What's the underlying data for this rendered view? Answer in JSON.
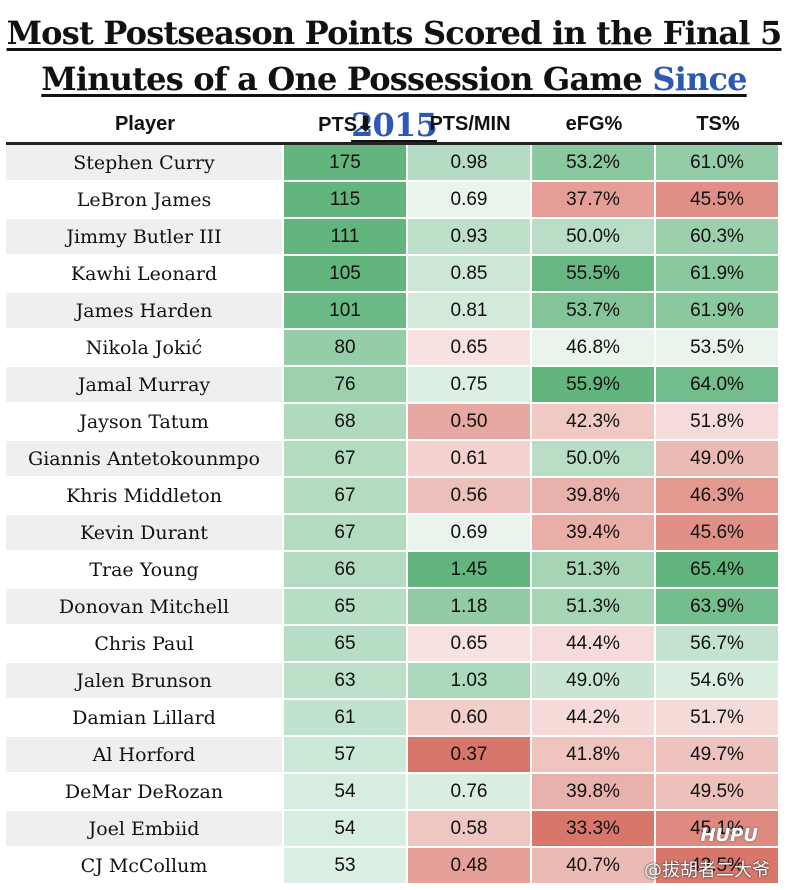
{
  "title": {
    "line1": "Most Postseason Points Scored in the Final 5",
    "line2_main": "Minutes of a One Possession Game",
    "line2_accent": "Since 2015"
  },
  "columns": [
    "Player",
    "PTS⬇",
    "PTS/MIN",
    "eFG%",
    "TS%"
  ],
  "watermark": "@拔胡者二大爷",
  "logo_text": "HUPU",
  "colors": {
    "green_strong": "#63b57e",
    "red_strong": "#d9766b",
    "neutral": "#ffffff",
    "title_accent": "#2d59b3"
  },
  "chart_data": {
    "type": "table",
    "columns": [
      "Player",
      "PTS",
      "PTS/MIN",
      "eFG%",
      "TS%"
    ],
    "rows": [
      {
        "player": "Stephen Curry",
        "pts": "175",
        "ptsmin": "0.98",
        "efg": "53.2%",
        "ts": "61.0%"
      },
      {
        "player": "LeBron James",
        "pts": "115",
        "ptsmin": "0.69",
        "efg": "37.7%",
        "ts": "45.5%"
      },
      {
        "player": "Jimmy Butler III",
        "pts": "111",
        "ptsmin": "0.93",
        "efg": "50.0%",
        "ts": "60.3%"
      },
      {
        "player": "Kawhi Leonard",
        "pts": "105",
        "ptsmin": "0.85",
        "efg": "55.5%",
        "ts": "61.9%"
      },
      {
        "player": "James Harden",
        "pts": "101",
        "ptsmin": "0.81",
        "efg": "53.7%",
        "ts": "61.9%"
      },
      {
        "player": "Nikola Jokić",
        "pts": "80",
        "ptsmin": "0.65",
        "efg": "46.8%",
        "ts": "53.5%"
      },
      {
        "player": "Jamal Murray",
        "pts": "76",
        "ptsmin": "0.75",
        "efg": "55.9%",
        "ts": "64.0%"
      },
      {
        "player": "Jayson Tatum",
        "pts": "68",
        "ptsmin": "0.50",
        "efg": "42.3%",
        "ts": "51.8%"
      },
      {
        "player": "Giannis Antetokounmpo",
        "pts": "67",
        "ptsmin": "0.61",
        "efg": "50.0%",
        "ts": "49.0%"
      },
      {
        "player": "Khris Middleton",
        "pts": "67",
        "ptsmin": "0.56",
        "efg": "39.8%",
        "ts": "46.3%"
      },
      {
        "player": "Kevin Durant",
        "pts": "67",
        "ptsmin": "0.69",
        "efg": "39.4%",
        "ts": "45.6%"
      },
      {
        "player": "Trae Young",
        "pts": "66",
        "ptsmin": "1.45",
        "efg": "51.3%",
        "ts": "65.4%"
      },
      {
        "player": "Donovan Mitchell",
        "pts": "65",
        "ptsmin": "1.18",
        "efg": "51.3%",
        "ts": "63.9%"
      },
      {
        "player": "Chris Paul",
        "pts": "65",
        "ptsmin": "0.65",
        "efg": "44.4%",
        "ts": "56.7%"
      },
      {
        "player": "Jalen Brunson",
        "pts": "63",
        "ptsmin": "1.03",
        "efg": "49.0%",
        "ts": "54.6%"
      },
      {
        "player": "Damian Lillard",
        "pts": "61",
        "ptsmin": "0.60",
        "efg": "44.2%",
        "ts": "51.7%"
      },
      {
        "player": "Al Horford",
        "pts": "57",
        "ptsmin": "0.37",
        "efg": "41.8%",
        "ts": "49.7%"
      },
      {
        "player": "DeMar DeRozan",
        "pts": "54",
        "ptsmin": "0.76",
        "efg": "39.8%",
        "ts": "49.5%"
      },
      {
        "player": "Joel Embiid",
        "pts": "54",
        "ptsmin": "0.58",
        "efg": "33.3%",
        "ts": "45.1%"
      },
      {
        "player": "CJ McCollum",
        "pts": "53",
        "ptsmin": "0.48",
        "efg": "40.7%",
        "ts": "43.5%"
      }
    ]
  }
}
